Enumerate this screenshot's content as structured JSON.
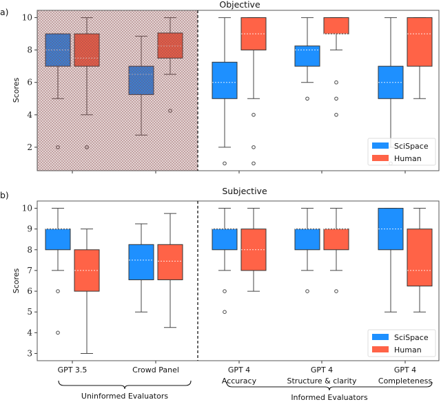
{
  "colors": {
    "SciSpace": "#1E90FF",
    "Human": "#FF6347",
    "hatch": "#8B4A4A"
  },
  "chart_data": [
    {
      "type": "box",
      "panel_label": "a)",
      "title": "Objective",
      "ylabel": "Scores",
      "ylim": [
        0.55,
        10.45
      ],
      "yticks": [
        2,
        4,
        6,
        8,
        10
      ],
      "legend": {
        "entries": [
          "SciSpace",
          "Human"
        ],
        "placement": "lower-right"
      },
      "hatched_region": "Uninformed Evaluators",
      "categories": [
        "GPT 3.5",
        "Crowd Panel",
        "GPT 4 Accuracy",
        "GPT 4 Structure & clarity",
        "GPT 4 Completeness"
      ],
      "series": [
        {
          "name": "SciSpace",
          "boxes": [
            {
              "q1": 7,
              "median": 8,
              "q3": 9,
              "whislo": 5,
              "whishi": 9,
              "fliers": [
                2
              ]
            },
            {
              "q1": 5.25,
              "median": 6.5,
              "q3": 7,
              "whislo": 2.75,
              "whishi": 8.85,
              "fliers": []
            },
            {
              "q1": 5,
              "median": 6,
              "q3": 7.25,
              "whislo": 2,
              "whishi": 10,
              "fliers": [
                1
              ]
            },
            {
              "q1": 7,
              "median": 8,
              "q3": 8.25,
              "whislo": 6,
              "whishi": 10,
              "fliers": [
                5
              ]
            },
            {
              "q1": 5,
              "median": 6,
              "q3": 7,
              "whislo": 2,
              "whishi": 10,
              "fliers": [
                1
              ]
            }
          ]
        },
        {
          "name": "Human",
          "boxes": [
            {
              "q1": 7,
              "median": 7.5,
              "q3": 9,
              "whislo": 4,
              "whishi": 10,
              "fliers": [
                2
              ]
            },
            {
              "q1": 7.5,
              "median": 8.25,
              "q3": 9.05,
              "whislo": 6.5,
              "whishi": 10,
              "fliers": [
                4.25
              ]
            },
            {
              "q1": 8,
              "median": 9,
              "q3": 10,
              "whislo": 5,
              "whishi": 10,
              "fliers": [
                4,
                2,
                1
              ]
            },
            {
              "q1": 9,
              "median": 9,
              "q3": 10,
              "whislo": 8,
              "whishi": 10,
              "fliers": [
                6,
                5,
                4
              ]
            },
            {
              "q1": 7,
              "median": 9,
              "q3": 10,
              "whislo": 5,
              "whishi": 10,
              "fliers": []
            }
          ]
        }
      ]
    },
    {
      "type": "box",
      "panel_label": "b)",
      "title": "Subjective",
      "ylabel": "Scores",
      "ylim": [
        2.65,
        10.35
      ],
      "yticks": [
        3,
        4,
        5,
        6,
        7,
        8,
        9,
        10
      ],
      "legend": {
        "entries": [
          "SciSpace",
          "Human"
        ],
        "placement": "lower-right"
      },
      "categories": [
        "GPT 3.5",
        "Crowd Panel",
        "GPT 4 Accuracy",
        "GPT 4 Structure & clarity",
        "GPT 4 Completeness"
      ],
      "xtick_labels": [
        [
          "GPT 3.5"
        ],
        [
          "Crowd Panel"
        ],
        [
          "GPT 4",
          "Accuracy"
        ],
        [
          "GPT 4",
          "Structure & clarity"
        ],
        [
          "GPT 4",
          "Completeness"
        ]
      ],
      "groups": [
        {
          "label": "Uninformed Evaluators",
          "categories": [
            0,
            1
          ]
        },
        {
          "label": "Informed Evaluators",
          "categories": [
            2,
            3,
            4
          ]
        }
      ],
      "series": [
        {
          "name": "SciSpace",
          "boxes": [
            {
              "q1": 8,
              "median": 9,
              "q3": 9,
              "whislo": 7,
              "whishi": 10,
              "fliers": [
                6,
                4
              ]
            },
            {
              "q1": 6.55,
              "median": 7.5,
              "q3": 8.25,
              "whislo": 5,
              "whishi": 9.25,
              "fliers": []
            },
            {
              "q1": 8,
              "median": 9,
              "q3": 9,
              "whislo": 7,
              "whishi": 10,
              "fliers": [
                6,
                5
              ]
            },
            {
              "q1": 8,
              "median": 9,
              "q3": 9,
              "whislo": 7,
              "whishi": 10,
              "fliers": [
                6
              ]
            },
            {
              "q1": 8,
              "median": 9,
              "q3": 10,
              "whislo": 5,
              "whishi": 10,
              "fliers": []
            }
          ]
        },
        {
          "name": "Human",
          "boxes": [
            {
              "q1": 6,
              "median": 7,
              "q3": 8,
              "whislo": 3,
              "whishi": 9,
              "fliers": []
            },
            {
              "q1": 6.55,
              "median": 7.45,
              "q3": 8.25,
              "whislo": 4.25,
              "whishi": 9.75,
              "fliers": []
            },
            {
              "q1": 7,
              "median": 8,
              "q3": 9,
              "whislo": 6,
              "whishi": 10,
              "fliers": []
            },
            {
              "q1": 8,
              "median": 9,
              "q3": 9,
              "whislo": 7,
              "whishi": 10,
              "fliers": [
                6
              ]
            },
            {
              "q1": 6.25,
              "median": 7,
              "q3": 9,
              "whislo": 5,
              "whishi": 10,
              "fliers": []
            }
          ]
        }
      ]
    }
  ]
}
